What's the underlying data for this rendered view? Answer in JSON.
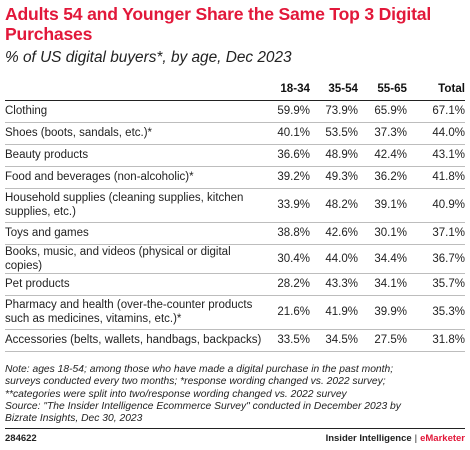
{
  "chart_data": {
    "type": "table",
    "title": "Adults 54 and Younger Share the Same Top 3 Digital Purchases",
    "subtitle": "% of US digital buyers*, by age, Dec 2023",
    "columns": [
      "18-34",
      "35-54",
      "55-65",
      "Total"
    ],
    "rows": [
      {
        "label": "Clothing",
        "values": [
          "59.9%",
          "73.9%",
          "65.9%",
          "67.1%"
        ]
      },
      {
        "label": "Shoes (boots, sandals, etc.)*",
        "values": [
          "40.1%",
          "53.5%",
          "37.3%",
          "44.0%"
        ]
      },
      {
        "label": "Beauty products",
        "values": [
          "36.6%",
          "48.9%",
          "42.4%",
          "43.1%"
        ]
      },
      {
        "label": "Food and beverages (non-alcoholic)*",
        "values": [
          "39.2%",
          "49.3%",
          "36.2%",
          "41.8%"
        ]
      },
      {
        "label": "Household supplies (cleaning supplies, kitchen supplies, etc.)",
        "values": [
          "33.9%",
          "48.2%",
          "39.1%",
          "40.9%"
        ]
      },
      {
        "label": "Toys and games",
        "values": [
          "38.8%",
          "42.6%",
          "30.1%",
          "37.1%"
        ]
      },
      {
        "label": "Books, music, and videos (physical or digital copies)",
        "values": [
          "30.4%",
          "44.0%",
          "34.4%",
          "36.7%"
        ]
      },
      {
        "label": "Pet products",
        "values": [
          "28.2%",
          "43.3%",
          "34.1%",
          "35.7%"
        ]
      },
      {
        "label": "Pharmacy and health (over-the-counter products such as medicines, vitamins, etc.)*",
        "values": [
          "21.6%",
          "41.9%",
          "39.9%",
          "35.3%"
        ]
      },
      {
        "label": "Accessories (belts, wallets, handbags, backpacks)",
        "values": [
          "33.5%",
          "34.5%",
          "27.5%",
          "31.8%"
        ]
      }
    ]
  },
  "notes": {
    "line1": "Note: ages 18-54; among those who have made a digital purchase in the past month;",
    "line2": "surveys conducted every two months; *response wording changed vs. 2022 survey;",
    "line3": "**categories were split into two/response wording changed vs. 2022 survey",
    "line4": "Source: \"The Insider Intelligence Ecommerce Survey\" conducted in December 2023 by",
    "line5": "Bizrate Insights, Dec 30, 2023"
  },
  "footer": {
    "chart_id": "284622",
    "brand": "Insider Intelligence",
    "separator": "|",
    "brand2": "eMarketer"
  },
  "colors": {
    "accent": "#e2183a",
    "text": "#222222",
    "rule": "#bdbdbd"
  }
}
